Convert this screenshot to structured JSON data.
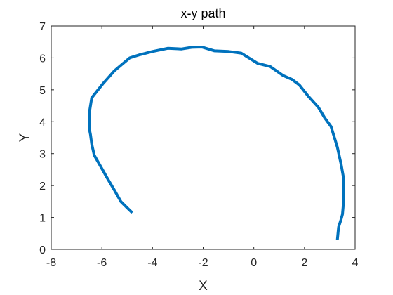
{
  "chart_data": {
    "type": "line",
    "title": "x-y path",
    "xlabel": "X",
    "ylabel": "Y",
    "xlim": [
      -8,
      4
    ],
    "ylim": [
      0,
      7
    ],
    "xticks": [
      -8,
      -6,
      -4,
      -2,
      0,
      2,
      4
    ],
    "yticks": [
      0,
      1,
      2,
      3,
      4,
      5,
      6,
      7
    ],
    "grid": false,
    "box": true,
    "series": [
      {
        "color": "#0072BD",
        "x": [
          -4.8,
          -5.0,
          -5.25,
          -5.5,
          -5.8,
          -6.05,
          -6.3,
          -6.4,
          -6.45,
          -6.5,
          -6.5,
          -6.45,
          -6.4,
          -6.2,
          -5.95,
          -5.5,
          -5.2,
          -4.9,
          -4.5,
          -4.0,
          -3.4,
          -2.85,
          -2.45,
          -2.05,
          -1.55,
          -1.0,
          -0.5,
          0.15,
          0.65,
          1.15,
          1.5,
          1.8,
          2.15,
          2.55,
          2.8,
          3.05,
          3.3,
          3.45,
          3.55,
          3.55,
          3.5,
          3.45,
          3.35,
          3.3
        ],
        "y": [
          1.15,
          1.3,
          1.5,
          1.85,
          2.25,
          2.6,
          2.95,
          3.3,
          3.6,
          3.8,
          4.25,
          4.5,
          4.75,
          4.95,
          5.2,
          5.6,
          5.8,
          6.0,
          6.1,
          6.2,
          6.3,
          6.28,
          6.33,
          6.34,
          6.22,
          6.2,
          6.15,
          5.83,
          5.73,
          5.45,
          5.33,
          5.15,
          4.8,
          4.45,
          4.12,
          3.85,
          3.2,
          2.65,
          2.2,
          1.55,
          1.1,
          0.95,
          0.7,
          0.3
        ]
      }
    ]
  }
}
